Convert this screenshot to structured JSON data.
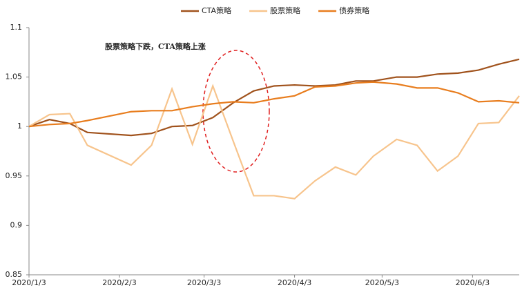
{
  "chart_data": {
    "type": "line",
    "annotation": "股票策略下跌，CTA策略上涨",
    "x": [
      "2020/1/3",
      "2020/1/10",
      "2020/1/17",
      "2020/1/23",
      "2020/2/7",
      "2020/2/14",
      "2020/2/21",
      "2020/2/28",
      "2020/3/6",
      "2020/3/13",
      "2020/3/20",
      "2020/3/27",
      "2020/4/3",
      "2020/4/10",
      "2020/4/17",
      "2020/4/24",
      "2020/4/30",
      "2020/5/8",
      "2020/5/15",
      "2020/5/22",
      "2020/5/29",
      "2020/6/5",
      "2020/6/12",
      "2020/6/19"
    ],
    "series": [
      {
        "name": "CTA策略",
        "color": "#a0521c",
        "values": [
          1.0,
          1.007,
          1.003,
          0.994,
          0.991,
          0.993,
          1.0,
          1.001,
          1.009,
          1.024,
          1.036,
          1.041,
          1.042,
          1.041,
          1.042,
          1.046,
          1.046,
          1.05,
          1.05,
          1.053,
          1.054,
          1.057,
          1.063,
          1.068
        ]
      },
      {
        "name": "股票策略",
        "color": "#f7c48c",
        "values": [
          1.0,
          1.012,
          1.013,
          0.981,
          0.961,
          0.981,
          1.038,
          0.982,
          1.041,
          0.985,
          0.93,
          0.93,
          0.927,
          0.945,
          0.959,
          0.951,
          0.97,
          0.987,
          0.981,
          0.955,
          0.97,
          1.003,
          1.004,
          1.031
        ]
      },
      {
        "name": "债券策略",
        "color": "#e87d1e",
        "values": [
          1.0,
          1.002,
          1.003,
          1.006,
          1.015,
          1.016,
          1.016,
          1.02,
          1.023,
          1.025,
          1.024,
          1.028,
          1.031,
          1.04,
          1.041,
          1.044,
          1.045,
          1.043,
          1.039,
          1.039,
          1.034,
          1.025,
          1.026,
          1.024
        ]
      }
    ],
    "xlim": [
      "2020/1/3",
      "2020/6/19"
    ],
    "xticks": [
      "2020/1/3",
      "2020/2/3",
      "2020/3/3",
      "2020/4/3",
      "2020/5/3",
      "2020/6/3"
    ],
    "ylim": [
      0.85,
      1.1
    ],
    "yticks": [
      0.85,
      0.9,
      0.95,
      1,
      1.05,
      1.1
    ],
    "grid": false
  }
}
